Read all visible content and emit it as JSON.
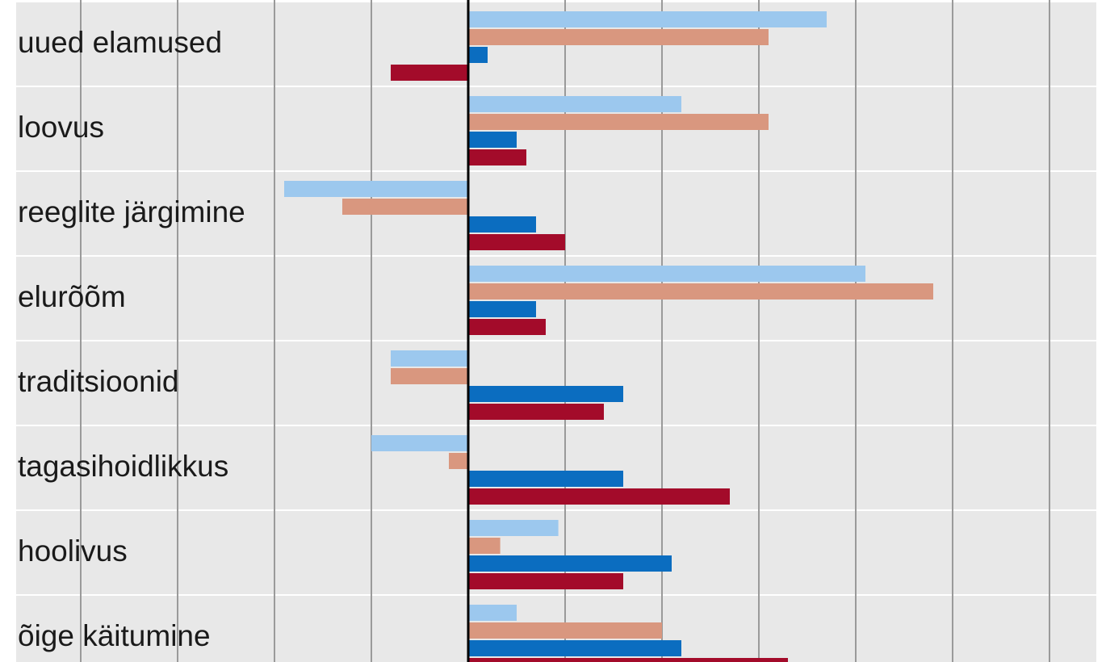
{
  "chart_data": {
    "type": "bar",
    "orientation": "horizontal",
    "categories": [
      "uued elamused",
      "loovus",
      "reeglite järgimine",
      "elurõõm",
      "traditsioonid",
      "tagasihoidlikkus",
      "hoolivus",
      "õige käitumine"
    ],
    "series": [
      {
        "color": "#9cc8ee",
        "values": [
          3.7,
          2.2,
          -1.9,
          4.1,
          -0.8,
          -1.0,
          0.93,
          0.5
        ]
      },
      {
        "color": "#d9977f",
        "values": [
          3.1,
          3.1,
          -1.3,
          4.8,
          -0.8,
          -0.2,
          0.33,
          2.0
        ]
      },
      {
        "color": "#0b6dc0",
        "values": [
          0.2,
          0.5,
          0.7,
          0.7,
          1.6,
          1.6,
          2.1,
          2.2
        ]
      },
      {
        "color": "#a30b2a",
        "values": [
          -0.8,
          0.6,
          1.0,
          0.8,
          1.4,
          2.7,
          1.6,
          3.3
        ]
      }
    ],
    "xlim": [
      -4.7,
      6.5
    ],
    "grid_step": 1,
    "grid": true,
    "background": "#e8e8e8",
    "zero_line_color": "#000000"
  }
}
